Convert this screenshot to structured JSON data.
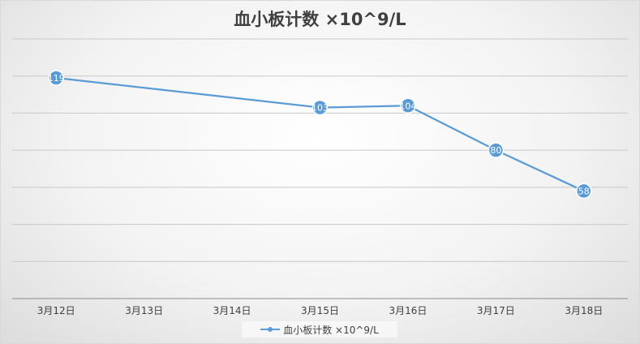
{
  "chart_data": {
    "type": "line",
    "title": "血小板计数 ×10^9/L",
    "categories": [
      "3月12日",
      "3月13日",
      "3月14日",
      "3月15日",
      "3月16日",
      "3月17日",
      "3月18日"
    ],
    "series": [
      {
        "name": "血小板计数 ×10^9/L",
        "values": [
          119,
          null,
          null,
          103,
          104,
          80,
          58
        ],
        "color": "#5b9bd5"
      }
    ],
    "data_labels": true,
    "ylim": [
      0,
      140
    ],
    "grid": true,
    "y_tick_labels_shown": false,
    "legend": "bottom"
  }
}
